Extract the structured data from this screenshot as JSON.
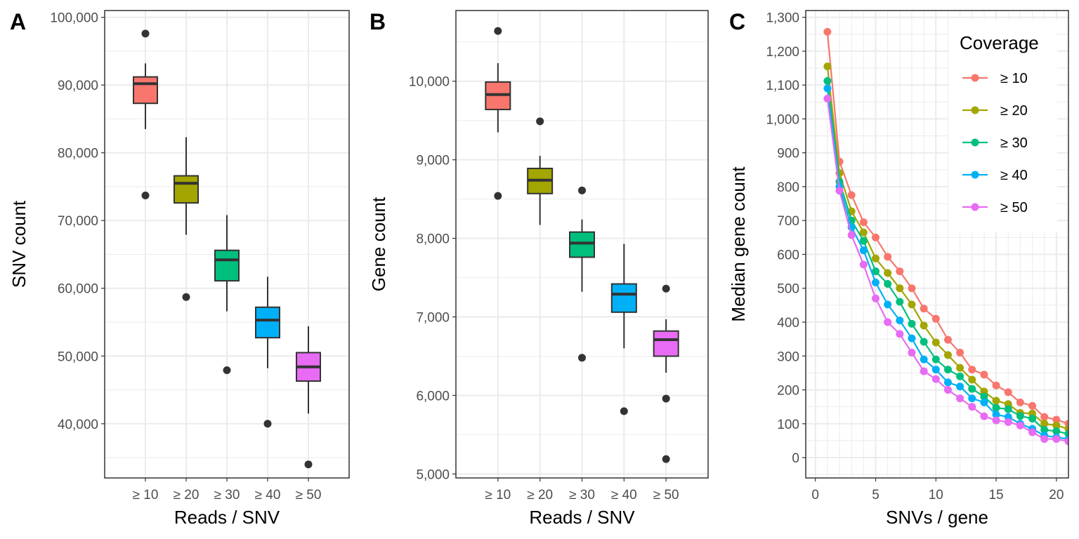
{
  "chart_data": [
    {
      "panel": "A",
      "type": "box",
      "categories": [
        "≥ 10",
        "≥ 20",
        "≥ 30",
        "≥ 40",
        "≥ 50"
      ],
      "colors": [
        "#F8766D",
        "#A3A500",
        "#00BF7D",
        "#00B0F6",
        "#E76BF3"
      ],
      "xlabel": "Reads / SNV",
      "ylabel": "SNV count",
      "ylim": [
        32000,
        101000
      ],
      "yticks": [
        40000,
        50000,
        60000,
        70000,
        80000,
        90000,
        100000
      ],
      "ytick_labels": [
        "40,000",
        "50,000",
        "60,000",
        "70,000",
        "80,000",
        "90,000",
        "100,000"
      ],
      "grid": true,
      "boxes": [
        {
          "lower_whisker": 83500,
          "q1": 87300,
          "median": 90200,
          "q3": 91200,
          "upper_whisker": 93200,
          "outliers": [
            97600,
            73700
          ]
        },
        {
          "lower_whisker": 67900,
          "q1": 72600,
          "median": 75500,
          "q3": 76600,
          "upper_whisker": 82300,
          "outliers": [
            58700
          ]
        },
        {
          "lower_whisker": 56600,
          "q1": 61100,
          "median": 64200,
          "q3": 65600,
          "upper_whisker": 70800,
          "outliers": [
            47900
          ]
        },
        {
          "lower_whisker": 48200,
          "q1": 52700,
          "median": 55300,
          "q3": 57200,
          "upper_whisker": 61700,
          "outliers": [
            40000
          ]
        },
        {
          "lower_whisker": 41500,
          "q1": 46300,
          "median": 48400,
          "q3": 50500,
          "upper_whisker": 54400,
          "outliers": [
            34000
          ]
        }
      ]
    },
    {
      "panel": "B",
      "type": "box",
      "categories": [
        "≥ 10",
        "≥ 20",
        "≥ 30",
        "≥ 40",
        "≥ 50"
      ],
      "colors": [
        "#F8766D",
        "#A3A500",
        "#00BF7D",
        "#00B0F6",
        "#E76BF3"
      ],
      "xlabel": "Reads / SNV",
      "ylabel": "Gene count",
      "ylim": [
        4950,
        10900
      ],
      "yticks": [
        5000,
        6000,
        7000,
        8000,
        9000,
        10000
      ],
      "ytick_labels": [
        "5,000",
        "6,000",
        "7,000",
        "8,000",
        "9,000",
        "10,000"
      ],
      "grid": true,
      "boxes": [
        {
          "lower_whisker": 9350,
          "q1": 9640,
          "median": 9830,
          "q3": 9990,
          "upper_whisker": 10230,
          "outliers": [
            10640,
            8540
          ]
        },
        {
          "lower_whisker": 8170,
          "q1": 8570,
          "median": 8740,
          "q3": 8890,
          "upper_whisker": 9050,
          "outliers": [
            9490
          ]
        },
        {
          "lower_whisker": 7320,
          "q1": 7760,
          "median": 7940,
          "q3": 8080,
          "upper_whisker": 8240,
          "outliers": [
            8610,
            6480
          ]
        },
        {
          "lower_whisker": 6600,
          "q1": 7060,
          "median": 7290,
          "q3": 7420,
          "upper_whisker": 7930,
          "outliers": [
            5800
          ]
        },
        {
          "lower_whisker": 6290,
          "q1": 6500,
          "median": 6710,
          "q3": 6820,
          "upper_whisker": 6970,
          "outliers": [
            7360,
            5960,
            5190
          ]
        }
      ]
    },
    {
      "panel": "C",
      "type": "line",
      "xlabel": "SNVs / gene",
      "ylabel": "Median gene count",
      "xlim": [
        -0.8,
        21
      ],
      "ylim": [
        -60,
        1320
      ],
      "xticks": [
        0,
        5,
        10,
        15,
        20
      ],
      "xtick_labels": [
        "0",
        "5",
        "10",
        "15",
        "20"
      ],
      "yticks": [
        0,
        100,
        200,
        300,
        400,
        500,
        600,
        700,
        800,
        900,
        1000,
        1100,
        1200,
        1300
      ],
      "ytick_labels": [
        "0",
        "100",
        "200",
        "300",
        "400",
        "500",
        "600",
        "700",
        "800",
        "900",
        "1,000",
        "1,100",
        "1,200",
        "1,300"
      ],
      "grid": true,
      "legend_title": "Coverage",
      "legend_position": "top-right",
      "x": [
        1,
        2,
        3,
        4,
        5,
        6,
        7,
        8,
        9,
        10,
        11,
        12,
        13,
        14,
        15,
        16,
        17,
        18,
        19,
        20,
        21
      ],
      "series": [
        {
          "name": "≥ 10",
          "color": "#F8766D",
          "values": [
            1257,
            874,
            775,
            695,
            650,
            593,
            550,
            500,
            440,
            410,
            348,
            310,
            260,
            245,
            213,
            193,
            163,
            153,
            120,
            112,
            100
          ]
        },
        {
          "name": "≥ 20",
          "color": "#A3A500",
          "values": [
            1155,
            840,
            727,
            665,
            588,
            545,
            500,
            452,
            390,
            340,
            303,
            265,
            230,
            195,
            168,
            158,
            132,
            130,
            100,
            95,
            85
          ]
        },
        {
          "name": "≥ 30",
          "color": "#00BF7D",
          "values": [
            1112,
            815,
            700,
            640,
            550,
            513,
            460,
            395,
            342,
            290,
            260,
            240,
            203,
            180,
            147,
            143,
            123,
            115,
            82,
            78,
            70
          ]
        },
        {
          "name": "≥ 40",
          "color": "#00B0F6",
          "values": [
            1090,
            800,
            680,
            612,
            517,
            452,
            405,
            352,
            290,
            260,
            222,
            210,
            175,
            163,
            127,
            120,
            100,
            85,
            65,
            60,
            55
          ]
        },
        {
          "name": "≥ 50",
          "color": "#E76BF3",
          "values": [
            1060,
            788,
            657,
            570,
            470,
            400,
            365,
            310,
            255,
            232,
            200,
            175,
            150,
            122,
            110,
            105,
            95,
            75,
            55,
            55,
            48
          ]
        }
      ]
    }
  ]
}
